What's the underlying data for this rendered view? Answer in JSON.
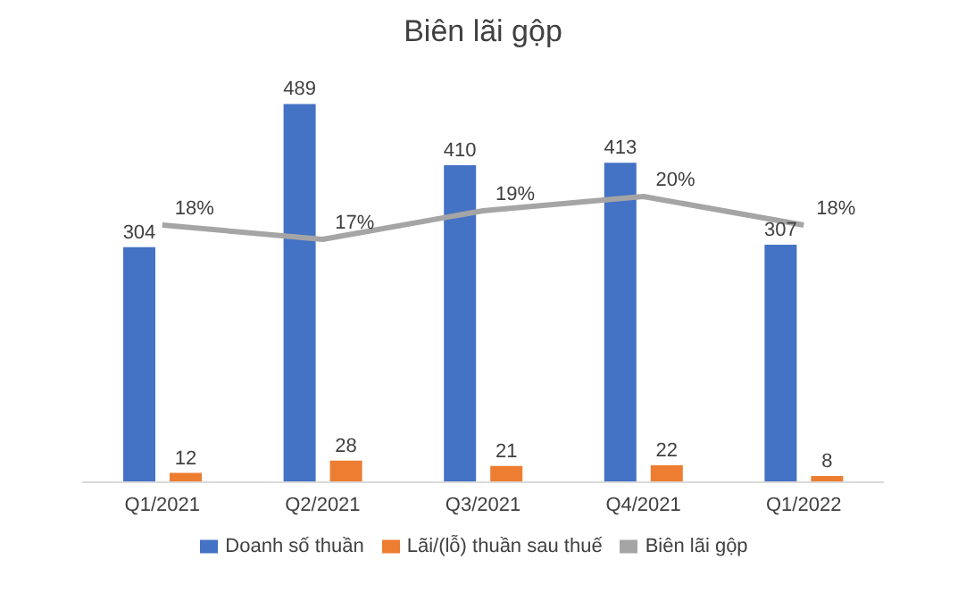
{
  "chart_data": {
    "type": "bar",
    "title": "Biên lãi gộp",
    "categories": [
      "Q1/2021",
      "Q2/2021",
      "Q3/2021",
      "Q4/2021",
      "Q1/2022"
    ],
    "series": [
      {
        "name": "Doanh số thuần",
        "color": "#4472c4",
        "values": [
          304,
          489,
          410,
          413,
          307
        ],
        "value_labels": [
          "304",
          "489",
          "410",
          "413",
          "307"
        ]
      },
      {
        "name": "Lãi/(lỗ) thuần sau thuế",
        "color": "#ed7d31",
        "values": [
          12,
          28,
          21,
          22,
          8
        ],
        "value_labels": [
          "12",
          "28",
          "21",
          "22",
          "8"
        ]
      },
      {
        "name": "Biên lãi gộp",
        "type": "line",
        "axis": "y2",
        "color": "#a5a5a5",
        "values": [
          18,
          17,
          19,
          20,
          18
        ],
        "value_labels": [
          "18%",
          "17%",
          "19%",
          "20%",
          "18%"
        ]
      }
    ],
    "legend": "bottom",
    "marker": "none",
    "tick_labels": "x"
  }
}
